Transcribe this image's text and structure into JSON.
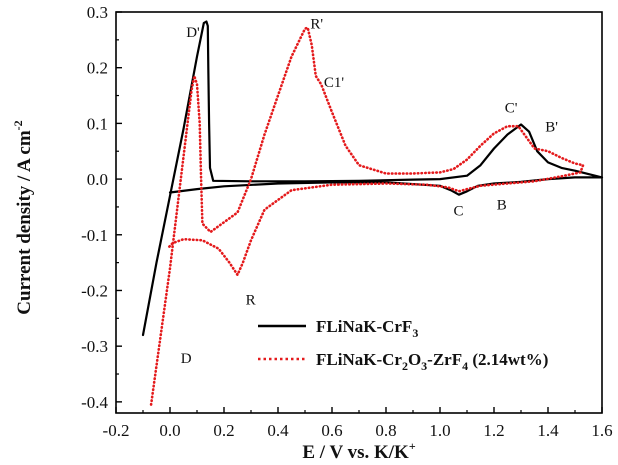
{
  "chart_data": {
    "type": "line",
    "xlabel": "E / V vs. K/K",
    "xlabel_sup": "+",
    "ylabel": "Current density / A cm",
    "ylabel_sup": "-2",
    "xlim": [
      -0.2,
      1.6
    ],
    "ylim": [
      -0.42,
      0.3
    ],
    "xticks": [
      -0.2,
      0.0,
      0.2,
      0.4,
      0.6,
      0.8,
      1.0,
      1.2,
      1.4,
      1.6
    ],
    "xtick_labels": [
      "-0.2",
      "0.0",
      "0.2",
      "0.4",
      "0.6",
      "0.8",
      "1.0",
      "1.2",
      "1.4",
      "1.6"
    ],
    "yticks": [
      -0.4,
      -0.3,
      -0.2,
      -0.1,
      0.0,
      0.1,
      0.2,
      0.3
    ],
    "ytick_labels": [
      "-0.4",
      "-0.3",
      "-0.2",
      "-0.1",
      "0.0",
      "0.1",
      "0.2",
      "0.3"
    ],
    "legend_position": "bottom-right",
    "series": [
      {
        "name": "FLiNaK-CrF3",
        "legend": {
          "base": "FLiNaK-CrF",
          "sub": "3",
          "rest": ""
        },
        "color": "#000000",
        "style": "solid",
        "points": [
          [
            -0.1,
            -0.28
          ],
          [
            -0.05,
            -0.15
          ],
          [
            0.0,
            -0.03
          ],
          [
            0.05,
            0.09
          ],
          [
            0.1,
            0.22
          ],
          [
            0.125,
            0.28
          ],
          [
            0.135,
            0.283
          ],
          [
            0.14,
            0.275
          ],
          [
            0.142,
            0.2
          ],
          [
            0.145,
            0.1
          ],
          [
            0.148,
            0.02
          ],
          [
            0.16,
            -0.003
          ],
          [
            0.3,
            -0.004
          ],
          [
            0.5,
            -0.004
          ],
          [
            0.7,
            -0.003
          ],
          [
            0.9,
            -0.001
          ],
          [
            1.0,
            0.0
          ],
          [
            1.1,
            0.006
          ],
          [
            1.15,
            0.025
          ],
          [
            1.2,
            0.055
          ],
          [
            1.25,
            0.08
          ],
          [
            1.3,
            0.098
          ],
          [
            1.33,
            0.085
          ],
          [
            1.36,
            0.05
          ],
          [
            1.4,
            0.03
          ],
          [
            1.45,
            0.02
          ],
          [
            1.5,
            0.015
          ],
          [
            1.6,
            0.003
          ],
          [
            1.5,
            0.003
          ],
          [
            1.4,
            0.0
          ],
          [
            1.3,
            -0.005
          ],
          [
            1.2,
            -0.008
          ],
          [
            1.14,
            -0.012
          ],
          [
            1.1,
            -0.022
          ],
          [
            1.07,
            -0.028
          ],
          [
            1.04,
            -0.02
          ],
          [
            1.0,
            -0.012
          ],
          [
            0.8,
            -0.006
          ],
          [
            0.6,
            -0.006
          ],
          [
            0.4,
            -0.008
          ],
          [
            0.2,
            -0.013
          ],
          [
            0.1,
            -0.018
          ],
          [
            0.0,
            -0.024
          ]
        ]
      },
      {
        "name": "FLiNaK-Cr2O3-ZrF4 (2.14wt%)",
        "legend": {
          "base": "FLiNaK-Cr",
          "sub": "2",
          "mid": "O",
          "sub2": "3",
          "mid2": "-ZrF",
          "sub3": "4",
          "rest": " (2.14wt%)"
        },
        "color": "#e41a1c",
        "style": "dotted",
        "points": [
          [
            -0.07,
            -0.405
          ],
          [
            -0.04,
            -0.3
          ],
          [
            0.0,
            -0.16
          ],
          [
            0.03,
            -0.04
          ],
          [
            0.06,
            0.08
          ],
          [
            0.08,
            0.16
          ],
          [
            0.09,
            0.185
          ],
          [
            0.1,
            0.17
          ],
          [
            0.11,
            0.1
          ],
          [
            0.115,
            0.0
          ],
          [
            0.12,
            -0.08
          ],
          [
            0.15,
            -0.095
          ],
          [
            0.25,
            -0.06
          ],
          [
            0.3,
            0.0
          ],
          [
            0.35,
            0.08
          ],
          [
            0.4,
            0.15
          ],
          [
            0.45,
            0.22
          ],
          [
            0.5,
            0.27
          ],
          [
            0.51,
            0.272
          ],
          [
            0.525,
            0.24
          ],
          [
            0.54,
            0.185
          ],
          [
            0.56,
            0.17
          ],
          [
            0.6,
            0.12
          ],
          [
            0.65,
            0.06
          ],
          [
            0.7,
            0.025
          ],
          [
            0.8,
            0.01
          ],
          [
            0.9,
            0.01
          ],
          [
            1.0,
            0.012
          ],
          [
            1.05,
            0.018
          ],
          [
            1.1,
            0.035
          ],
          [
            1.15,
            0.06
          ],
          [
            1.2,
            0.082
          ],
          [
            1.25,
            0.095
          ],
          [
            1.29,
            0.095
          ],
          [
            1.32,
            0.075
          ],
          [
            1.35,
            0.055
          ],
          [
            1.4,
            0.05
          ],
          [
            1.45,
            0.038
          ],
          [
            1.5,
            0.028
          ],
          [
            1.53,
            0.025
          ],
          [
            1.52,
            0.012
          ],
          [
            1.45,
            0.005
          ],
          [
            1.35,
            -0.004
          ],
          [
            1.25,
            -0.008
          ],
          [
            1.15,
            -0.012
          ],
          [
            1.1,
            -0.018
          ],
          [
            1.07,
            -0.022
          ],
          [
            1.03,
            -0.015
          ],
          [
            0.95,
            -0.01
          ],
          [
            0.8,
            -0.008
          ],
          [
            0.6,
            -0.01
          ],
          [
            0.45,
            -0.02
          ],
          [
            0.35,
            -0.055
          ],
          [
            0.3,
            -0.11
          ],
          [
            0.27,
            -0.15
          ],
          [
            0.25,
            -0.172
          ],
          [
            0.22,
            -0.15
          ],
          [
            0.18,
            -0.125
          ],
          [
            0.12,
            -0.11
          ],
          [
            0.05,
            -0.108
          ],
          [
            0.01,
            -0.115
          ],
          [
            -0.01,
            -0.125
          ]
        ]
      }
    ],
    "annotations": [
      {
        "text": "D'",
        "x": 0.06,
        "y": 0.255
      },
      {
        "text": "R'",
        "x": 0.52,
        "y": 0.27
      },
      {
        "text": "C1'",
        "x": 0.57,
        "y": 0.165
      },
      {
        "text": "C'",
        "x": 1.24,
        "y": 0.12
      },
      {
        "text": "B'",
        "x": 1.39,
        "y": 0.085
      },
      {
        "text": "C",
        "x": 1.05,
        "y": -0.065
      },
      {
        "text": "B",
        "x": 1.21,
        "y": -0.055
      },
      {
        "text": "R",
        "x": 0.28,
        "y": -0.225
      },
      {
        "text": "D",
        "x": 0.04,
        "y": -0.33
      }
    ]
  }
}
